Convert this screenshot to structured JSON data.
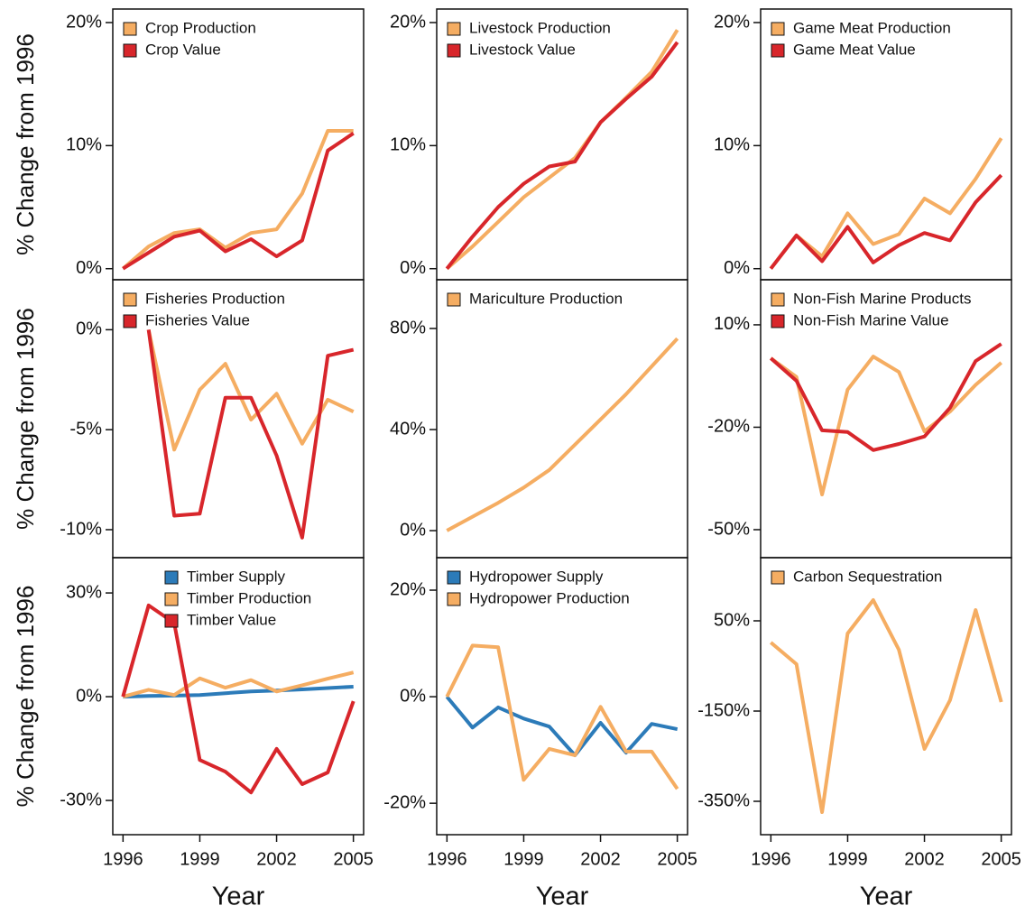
{
  "chart_data": [
    {
      "type": "line",
      "ylabel": "% Change from 1996",
      "x": [
        1996,
        1997,
        1998,
        1999,
        2000,
        2001,
        2002,
        2003,
        2004,
        2005
      ],
      "xlim": [
        1995.6,
        2005.4
      ],
      "ylim": [
        -0.9,
        21.1
      ],
      "yticks": [
        {
          "value": 0,
          "label": "0%"
        },
        {
          "value": 10,
          "label": "10%"
        },
        {
          "value": 20,
          "label": "20%"
        }
      ],
      "legend": "top-left",
      "series": [
        {
          "name": "Crop Production",
          "color": "#f5ad62",
          "values": [
            0,
            1.8,
            2.9,
            3.2,
            1.7,
            2.9,
            3.2,
            6.1,
            11.2,
            11.2
          ]
        },
        {
          "name": "Crop Value",
          "color": "#d8262b",
          "values": [
            0,
            1.3,
            2.6,
            3.1,
            1.4,
            2.4,
            1.0,
            2.3,
            9.6,
            11.0
          ]
        }
      ]
    },
    {
      "type": "line",
      "x": [
        1996,
        1997,
        1998,
        1999,
        2000,
        2001,
        2002,
        2003,
        2004,
        2005
      ],
      "xlim": [
        1995.6,
        2005.4
      ],
      "ylim": [
        -0.9,
        21.1
      ],
      "yticks": [
        {
          "value": 0,
          "label": "0%"
        },
        {
          "value": 10,
          "label": "10%"
        },
        {
          "value": 20,
          "label": "20%"
        }
      ],
      "legend": "top-left",
      "series": [
        {
          "name": "Livestock Production",
          "color": "#f5ad62",
          "values": [
            0,
            1.8,
            3.8,
            5.8,
            7.4,
            9.0,
            11.9,
            13.9,
            16.0,
            19.4
          ]
        },
        {
          "name": "Livestock Value",
          "color": "#d8262b",
          "values": [
            0,
            2.6,
            5.0,
            6.9,
            8.3,
            8.7,
            11.9,
            13.8,
            15.6,
            18.4
          ]
        }
      ]
    },
    {
      "type": "line",
      "x": [
        1996,
        1997,
        1998,
        1999,
        2000,
        2001,
        2002,
        2003,
        2004,
        2005
      ],
      "xlim": [
        1995.6,
        2005.4
      ],
      "ylim": [
        -0.9,
        21.1
      ],
      "yticks": [
        {
          "value": 0,
          "label": "0%"
        },
        {
          "value": 10,
          "label": "10%"
        },
        {
          "value": 20,
          "label": "20%"
        }
      ],
      "legend": "top-left",
      "series": [
        {
          "name": "Game Meat Production",
          "color": "#f5ad62",
          "values": [
            0,
            2.7,
            1.0,
            4.5,
            2.0,
            2.8,
            5.7,
            4.5,
            7.3,
            10.6
          ]
        },
        {
          "name": "Game Meat Value",
          "color": "#d8262b",
          "values": [
            0,
            2.7,
            0.6,
            3.4,
            0.5,
            1.9,
            2.9,
            2.3,
            5.4,
            7.6
          ]
        }
      ]
    },
    {
      "type": "line",
      "ylabel": "% Change from 1996",
      "x": [
        1996,
        1997,
        1998,
        1999,
        2000,
        2001,
        2002,
        2003,
        2004,
        2005
      ],
      "xlim": [
        1995.6,
        2005.4
      ],
      "ylim": [
        -11.4,
        2.5
      ],
      "yticks": [
        {
          "value": 0,
          "label": "0%"
        },
        {
          "value": -5,
          "label": "-5%"
        },
        {
          "value": -10,
          "label": "-10%"
        }
      ],
      "legend": "top-left",
      "series": [
        {
          "name": "Fisheries Production",
          "color": "#f5ad62",
          "values": [
            null,
            0,
            -6.0,
            -3.0,
            -1.7,
            -4.5,
            -3.2,
            -5.7,
            -3.5,
            -4.1
          ]
        },
        {
          "name": "Fisheries Value",
          "color": "#d8262b",
          "values": [
            null,
            0,
            -9.3,
            -9.2,
            -3.4,
            -3.4,
            -6.3,
            -10.4,
            -1.3,
            -1.0
          ]
        }
      ]
    },
    {
      "type": "line",
      "x": [
        1996,
        1997,
        1998,
        1999,
        2000,
        2001,
        2002,
        2003,
        2004,
        2005
      ],
      "xlim": [
        1995.6,
        2005.4
      ],
      "ylim": [
        -10.7,
        99.3
      ],
      "yticks": [
        {
          "value": 0,
          "label": "0%"
        },
        {
          "value": 40,
          "label": "40%"
        },
        {
          "value": 80,
          "label": "80%"
        }
      ],
      "legend": "top-left",
      "series": [
        {
          "name": "Mariculture Production",
          "color": "#f5ad62",
          "values": [
            0,
            5.5,
            11,
            17,
            24,
            34,
            44,
            54,
            65,
            76
          ]
        }
      ]
    },
    {
      "type": "line",
      "x": [
        1996,
        1997,
        1998,
        1999,
        2000,
        2001,
        2002,
        2003,
        2004,
        2005
      ],
      "xlim": [
        1995.6,
        2005.4
      ],
      "ylim": [
        -58.2,
        23.2
      ],
      "yticks": [
        {
          "value": 10,
          "label": "10%"
        },
        {
          "value": -20,
          "label": "-20%"
        },
        {
          "value": -50,
          "label": "-50%"
        }
      ],
      "legend": "top-left",
      "series": [
        {
          "name": "Non-Fish Marine Products",
          "color": "#f5ad62",
          "values": [
            0.2,
            -5.3,
            -39.7,
            -9,
            0.7,
            -3.8,
            -21.2,
            -15.4,
            -7.6,
            -1.1
          ]
        },
        {
          "name": "Non-Fish Marine Value",
          "color": "#d8262b",
          "values": [
            0.2,
            -6.4,
            -20.9,
            -21.4,
            -26.7,
            -24.9,
            -22.7,
            -14.3,
            -0.6,
            4.4
          ]
        }
      ]
    },
    {
      "type": "line",
      "ylabel": "% Change from 1996",
      "xlabel": "Year",
      "x": [
        1996,
        1997,
        1998,
        1999,
        2000,
        2001,
        2002,
        2003,
        2004,
        2005
      ],
      "xlim": [
        1995.6,
        2005.4
      ],
      "xticks": [
        1996,
        1999,
        2002,
        2005
      ],
      "ylim": [
        -39.9,
        40.2
      ],
      "yticks": [
        {
          "value": 30,
          "label": "30%"
        },
        {
          "value": 0,
          "label": "0%"
        },
        {
          "value": -30,
          "label": "-30%"
        }
      ],
      "legend": "top-right",
      "series": [
        {
          "name": "Timber Supply",
          "color": "#2c7bb9",
          "values": [
            0,
            0.2,
            0.3,
            0.5,
            1.0,
            1.5,
            1.8,
            2.1,
            2.5,
            2.9
          ]
        },
        {
          "name": "Timber Production",
          "color": "#f5ad62",
          "values": [
            0,
            2.0,
            0.5,
            5.3,
            2.6,
            4.8,
            1.5,
            3.3,
            5.2,
            7.0
          ]
        },
        {
          "name": "Timber Value",
          "color": "#d8262b",
          "values": [
            0,
            26.4,
            21.3,
            -18.3,
            -21.7,
            -27.7,
            -15.1,
            -25.3,
            -21.9,
            -1.3
          ]
        }
      ]
    },
    {
      "type": "line",
      "xlabel": "Year",
      "x": [
        1996,
        1997,
        1998,
        1999,
        2000,
        2001,
        2002,
        2003,
        2004,
        2005
      ],
      "xlim": [
        1995.6,
        2005.4
      ],
      "xticks": [
        1996,
        1999,
        2002,
        2005
      ],
      "ylim": [
        -25.9,
        26.1
      ],
      "yticks": [
        {
          "value": 20,
          "label": "20%"
        },
        {
          "value": 0,
          "label": "0%"
        },
        {
          "value": -20,
          "label": "-20%"
        }
      ],
      "legend": "top-left",
      "series": [
        {
          "name": "Hydropower Supply",
          "color": "#2c7bb9",
          "values": [
            0,
            -5.8,
            -2.0,
            -4.1,
            -5.6,
            -11.0,
            -4.9,
            -10.5,
            -5.1,
            -6.1
          ]
        },
        {
          "name": "Hydropower Production",
          "color": "#f5ad62",
          "values": [
            0,
            9.6,
            9.3,
            -15.6,
            -9.8,
            -11.0,
            -1.9,
            -10.3,
            -10.3,
            -17.3
          ]
        }
      ]
    },
    {
      "type": "line",
      "xlabel": "Year",
      "x": [
        1996,
        1997,
        1998,
        1999,
        2000,
        2001,
        2002,
        2003,
        2004,
        2005
      ],
      "xlim": [
        1995.6,
        2005.4
      ],
      "xticks": [
        1996,
        1999,
        2002,
        2005
      ],
      "ylim": [
        -424,
        190
      ],
      "yticks": [
        {
          "value": 50,
          "label": "50%"
        },
        {
          "value": -150,
          "label": "-150%"
        },
        {
          "value": -350,
          "label": "-350%"
        }
      ],
      "legend": "top-left",
      "series": [
        {
          "name": "Carbon Sequestration",
          "color": "#f5ad62",
          "values": [
            2,
            -46,
            -374,
            22,
            96,
            -14,
            -234,
            -126,
            74,
            -130
          ]
        }
      ]
    }
  ]
}
